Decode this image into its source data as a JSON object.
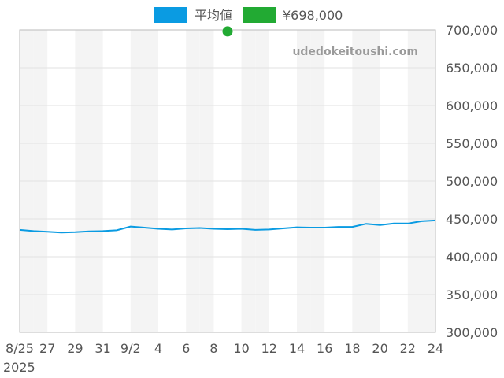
{
  "watermark": "udedokeitoushi.com",
  "colors": {
    "average": "#0a9be2",
    "price": "#22aa33",
    "band": "#f4f4f4",
    "grid": "#e2e2e2",
    "axis": "#bbbbbb"
  },
  "chart_data": {
    "type": "line",
    "title": "",
    "xlabel": "",
    "ylabel": "",
    "ylim": [
      300000,
      700000
    ],
    "grid": true,
    "y_axis_side": "right",
    "legend_position": "top-center",
    "x_tick_labels": [
      "8/25",
      "27",
      "29",
      "31",
      "9/2",
      "4",
      "6",
      "8",
      "10",
      "12",
      "14",
      "16",
      "18",
      "20",
      "22",
      "24"
    ],
    "x_sub_label": "2025",
    "y_tick_labels": [
      "700,000",
      "650,000",
      "600,000",
      "550,000",
      "500,000",
      "450,000",
      "400,000",
      "350,000",
      "300,000"
    ],
    "dates": [
      "8/25",
      "8/26",
      "8/27",
      "8/28",
      "8/29",
      "8/30",
      "8/31",
      "9/1",
      "9/2",
      "9/3",
      "9/4",
      "9/5",
      "9/6",
      "9/7",
      "9/8",
      "9/9",
      "9/10",
      "9/11",
      "9/12",
      "9/13",
      "9/14",
      "9/15",
      "9/16",
      "9/17",
      "9/18",
      "9/19",
      "9/20",
      "9/21",
      "9/22",
      "9/23",
      "9/24"
    ],
    "series": [
      {
        "name": "平均値",
        "kind": "line",
        "color": "#0a9be2",
        "values": [
          435500,
          434000,
          433000,
          432000,
          432500,
          433500,
          434000,
          435000,
          440000,
          438500,
          437000,
          436000,
          437500,
          438000,
          437000,
          436500,
          437000,
          435500,
          436000,
          437500,
          439000,
          438500,
          438500,
          439500,
          439500,
          443500,
          442000,
          444000,
          444000,
          447000,
          448000
        ]
      },
      {
        "name": "¥698,000",
        "kind": "point",
        "color": "#22aa33",
        "points": [
          {
            "date": "9/9",
            "value": 698000
          }
        ]
      }
    ]
  }
}
